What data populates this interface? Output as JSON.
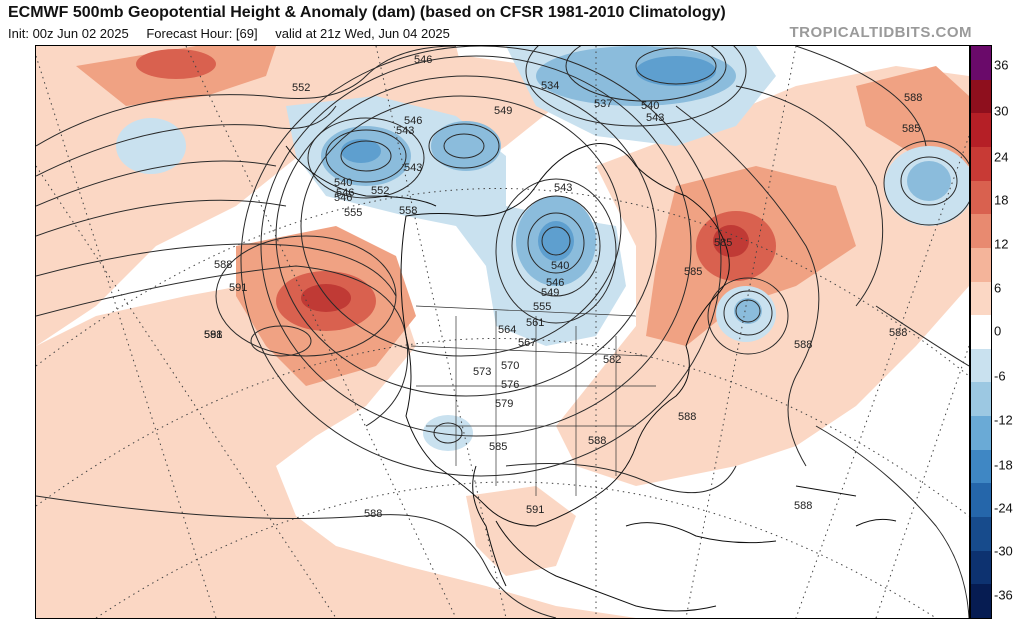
{
  "header": {
    "title": "ECMWF 500mb Geopotential Height & Anomaly (dam) (based on CFSR 1981-2010 Climatology)",
    "init": "Init: 00z Jun 02 2025",
    "forecast_hour": "Forecast Hour: [69]",
    "valid": "valid at 21z Wed, Jun 04 2025",
    "brand": "TROPICALTIDBITS.COM"
  },
  "colorbar": {
    "ticks": [
      "36",
      "30",
      "24",
      "18",
      "12",
      "6",
      "0",
      "-6",
      "-12",
      "-18",
      "-24",
      "-30",
      "-36"
    ],
    "colors": [
      "#6a0a6a",
      "#8e0f1d",
      "#b51f26",
      "#c83a35",
      "#d9614f",
      "#e88a70",
      "#f4b49a",
      "#fbd7c4",
      "#ffffff",
      "#c9e1ef",
      "#9cc8e2",
      "#6aaad6",
      "#3f87c4",
      "#2566aa",
      "#174b8c",
      "#0d3270",
      "#061c52"
    ]
  },
  "map": {
    "height_labels": [
      {
        "text": "546"
      },
      {
        "text": "552"
      },
      {
        "text": "543"
      },
      {
        "text": "546"
      },
      {
        "text": "549"
      },
      {
        "text": "534"
      },
      {
        "text": "537"
      },
      {
        "text": "540"
      },
      {
        "text": "543"
      },
      {
        "text": "543"
      },
      {
        "text": "546"
      },
      {
        "text": "540"
      },
      {
        "text": "546"
      },
      {
        "text": "552"
      },
      {
        "text": "555"
      },
      {
        "text": "558"
      },
      {
        "text": "543"
      },
      {
        "text": "585"
      },
      {
        "text": "585"
      },
      {
        "text": "588"
      },
      {
        "text": "591"
      },
      {
        "text": "588"
      },
      {
        "text": "591"
      },
      {
        "text": "540"
      },
      {
        "text": "546"
      },
      {
        "text": "549"
      },
      {
        "text": "555"
      },
      {
        "text": "561"
      },
      {
        "text": "564"
      },
      {
        "text": "567"
      },
      {
        "text": "570"
      },
      {
        "text": "573"
      },
      {
        "text": "576"
      },
      {
        "text": "579"
      },
      {
        "text": "582"
      },
      {
        "text": "585"
      },
      {
        "text": "588"
      },
      {
        "text": "588"
      },
      {
        "text": "588"
      },
      {
        "text": "591"
      },
      {
        "text": "588"
      },
      {
        "text": "588"
      },
      {
        "text": "585"
      },
      {
        "text": "588"
      },
      {
        "text": "588"
      }
    ]
  }
}
